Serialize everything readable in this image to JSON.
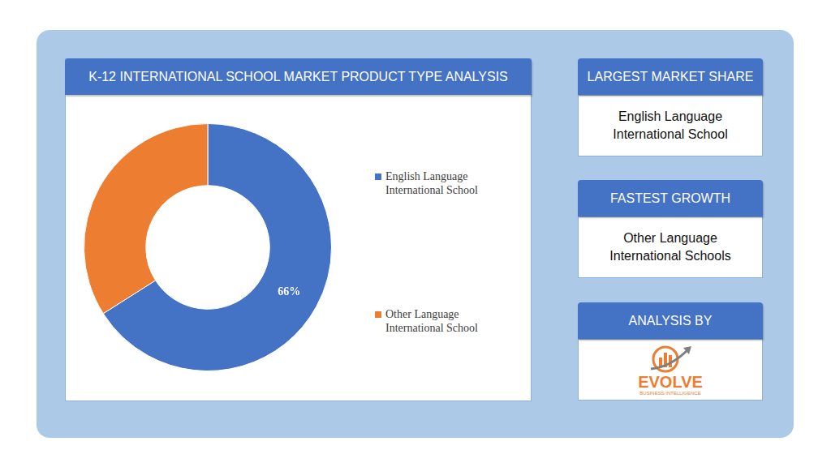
{
  "chart_data": {
    "type": "doughnut",
    "title": "K-12 INTERNATIONAL SCHOOL MARKET PRODUCT TYPE ANALYSIS",
    "categories": [
      "English Language International School",
      "Other Language International School"
    ],
    "values": [
      66,
      34
    ],
    "value_labels": [
      "66%",
      null
    ],
    "colors": [
      "#4472c4",
      "#ed7d31"
    ],
    "data_labels": true,
    "legend": "right"
  },
  "panels": [
    {
      "heading": "LARGEST MARKET SHARE",
      "text": "English Language International School"
    },
    {
      "heading": "FASTEST GROWTH",
      "text": "Other Language International Schools"
    }
  ],
  "logo": {
    "heading": "ANALYSIS BY",
    "name": "EVOLVE",
    "tagline": "BUSINESS INTELLIGENCE"
  }
}
